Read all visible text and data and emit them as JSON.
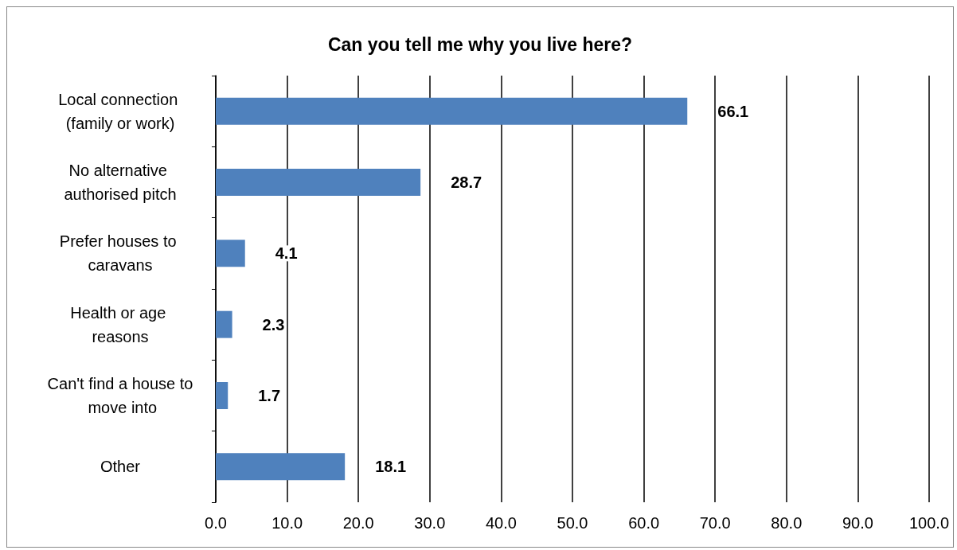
{
  "chart_data": {
    "type": "bar",
    "orientation": "horizontal",
    "title": "Can you tell me why you live here?",
    "categories": [
      "Local connection (family or work)",
      "No alternative authorised pitch",
      "Prefer houses to caravans",
      "Health or age reasons",
      "Can't find a house to move into",
      "Other"
    ],
    "values": [
      66.1,
      28.7,
      4.1,
      2.3,
      1.7,
      18.1
    ],
    "color": "#4f81bd",
    "xlim": [
      0,
      100
    ],
    "xticks": [
      {
        "value": 0,
        "label": "0.0"
      },
      {
        "value": 10,
        "label": "10.0"
      },
      {
        "value": 20,
        "label": "20.0"
      },
      {
        "value": 30,
        "label": "30.0"
      },
      {
        "value": 40,
        "label": "40.0"
      },
      {
        "value": 50,
        "label": "50.0"
      },
      {
        "value": 60,
        "label": "60.0"
      },
      {
        "value": 70,
        "label": "70.0"
      },
      {
        "value": 80,
        "label": "80.0"
      },
      {
        "value": 90,
        "label": "90.0"
      },
      {
        "value": 100,
        "label": "100.0"
      }
    ],
    "grid": "x",
    "data_labels": true
  }
}
